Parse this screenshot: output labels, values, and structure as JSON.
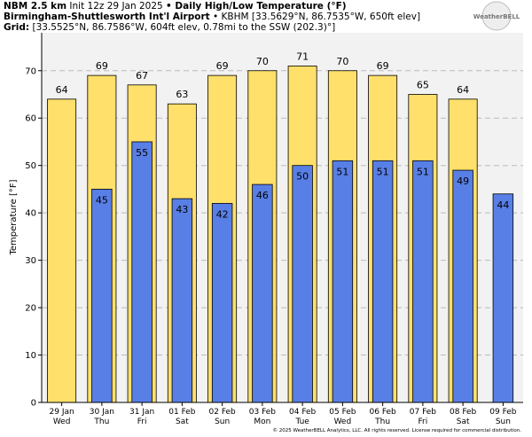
{
  "header": {
    "line1": {
      "model": "NBM 2.5 km",
      "init": "Init 12z 29 Jan 2025",
      "product": "• Daily High/Low Temperature (°F)"
    },
    "line2": {
      "station": "Birmingham-Shuttlesworth Int'l Airport",
      "info": "• KBHM [33.5629°N, 86.7535°W, 650ft elev]"
    },
    "line3": {
      "label": "Grid:",
      "info": "[33.5525°N, 86.7586°W, 604ft elev, 0.78mi to the SSW (202.3)°]"
    },
    "logo": "WeatherBELL"
  },
  "chart_data": {
    "type": "bar",
    "ylabel": "Temperature [°F]",
    "categories": [
      "29 Jan",
      "30 Jan",
      "31 Jan",
      "01 Feb",
      "02 Feb",
      "03 Feb",
      "04 Feb",
      "05 Feb",
      "06 Feb",
      "07 Feb",
      "08 Feb",
      "09 Feb"
    ],
    "weekdays": [
      "Wed",
      "Thu",
      "Fri",
      "Sat",
      "Sun",
      "Mon",
      "Tue",
      "Wed",
      "Thu",
      "Fri",
      "Sat",
      "Sun"
    ],
    "series": [
      {
        "color": "#ffe06a",
        "values": [
          64,
          69,
          67,
          63,
          69,
          70,
          71,
          70,
          69,
          65,
          64,
          null
        ]
      },
      {
        "color": "#587fe6",
        "values": [
          null,
          45,
          55,
          43,
          42,
          46,
          50,
          51,
          51,
          51,
          49,
          44
        ]
      }
    ],
    "ylim": [
      0,
      78
    ],
    "yticks": [
      0,
      10,
      20,
      30,
      40,
      50,
      60,
      70
    ],
    "grid": true,
    "footer": "© 2025 WeatherBELL Analytics, LLC. All rights reserved. License required for commercial distribution."
  }
}
